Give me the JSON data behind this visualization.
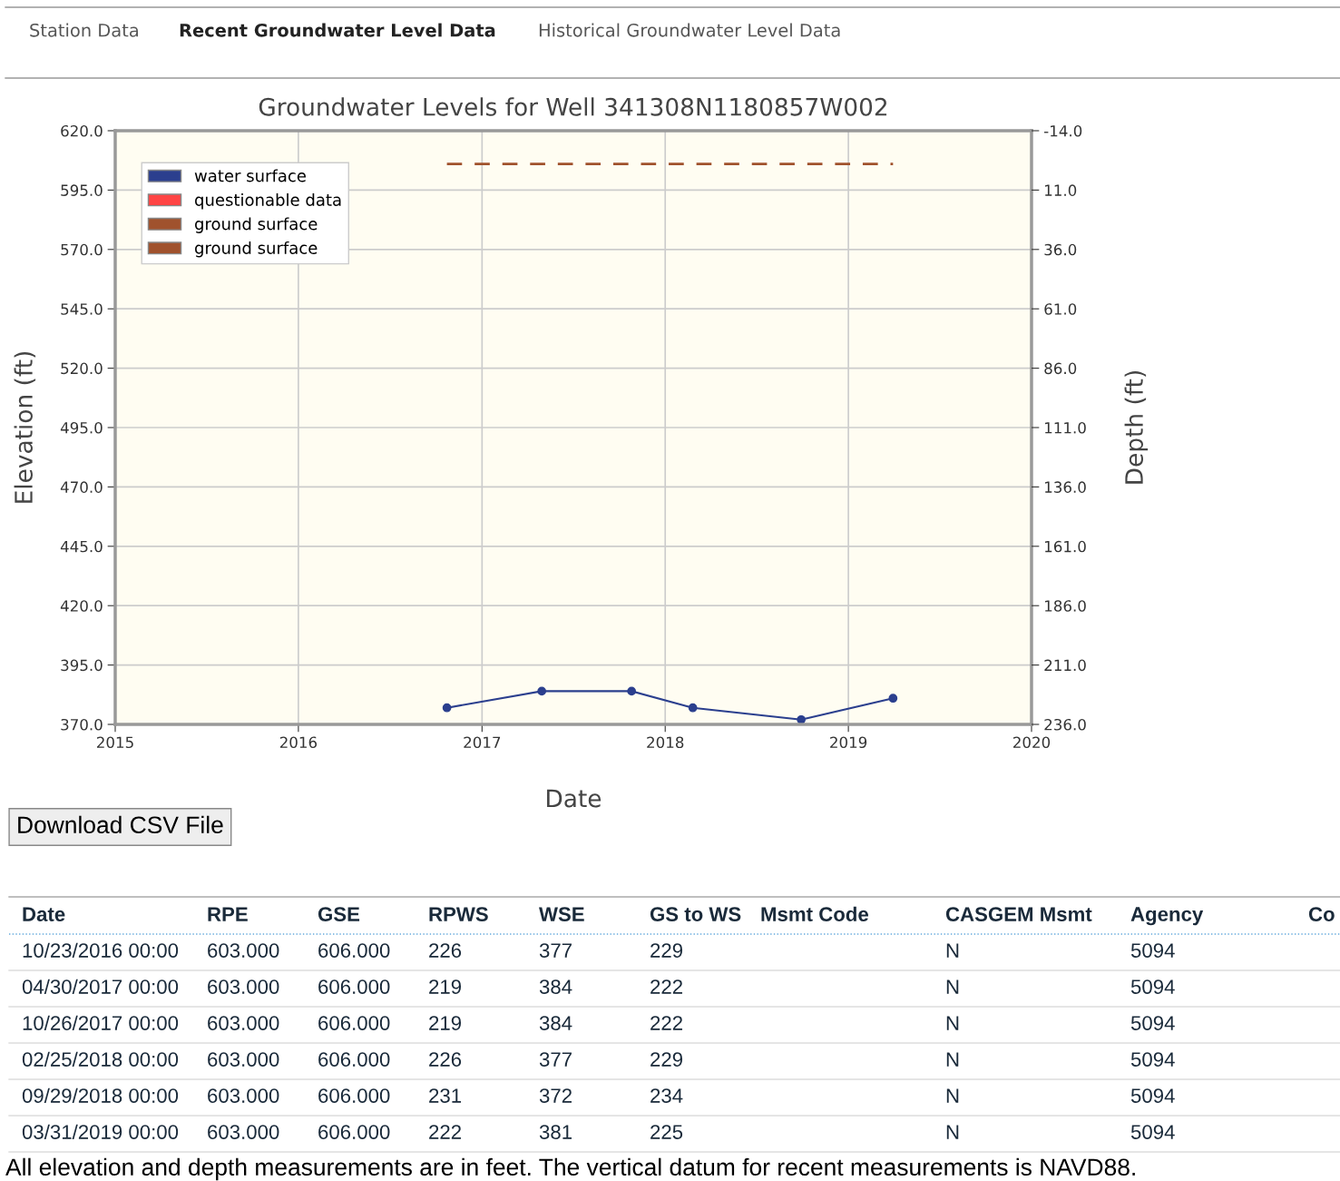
{
  "chart_data": {
    "type": "line",
    "title": "Groundwater Levels for Well 341308N1180857W002",
    "xlabel": "Date",
    "ylabel": "Elevation (ft)",
    "y2label": "Depth (ft)",
    "series": [
      {
        "name": "water surface",
        "color": "#2b3f8e",
        "marker": "circle",
        "line_style": "solid",
        "x": [
          "2016-10-23",
          "2017-04-30",
          "2017-10-26",
          "2018-02-25",
          "2018-09-29",
          "2019-03-31"
        ],
        "values": [
          377,
          384,
          384,
          377,
          372,
          381
        ]
      },
      {
        "name": "questionable data",
        "color": "#ff4444",
        "marker": "none",
        "line_style": "solid"
      },
      {
        "name": "ground surface",
        "color": "#a0522d",
        "marker": "none",
        "line_style": "dashed",
        "x": [
          "2016-10-23",
          "2019-03-31"
        ],
        "values": [
          606,
          606
        ]
      },
      {
        "name": "ground surface",
        "color": "#a0522d",
        "marker": "none",
        "line_style": "dashed"
      }
    ],
    "xlim": [
      "2015-01-01",
      "2020-01-01"
    ],
    "xticks": [
      {
        "value": "2015-01-01",
        "label": "2015"
      },
      {
        "value": "2016-01-01",
        "label": "2016"
      },
      {
        "value": "2017-01-01",
        "label": "2017"
      },
      {
        "value": "2018-01-01",
        "label": "2018"
      },
      {
        "value": "2019-01-01",
        "label": "2019"
      },
      {
        "value": "2020-01-01",
        "label": "2020"
      }
    ],
    "ylim": [
      370,
      620
    ],
    "yticks": [
      {
        "value": 370,
        "label": "370.0"
      },
      {
        "value": 395,
        "label": "395.0"
      },
      {
        "value": 420,
        "label": "420.0"
      },
      {
        "value": 445,
        "label": "445.0"
      },
      {
        "value": 470,
        "label": "470.0"
      },
      {
        "value": 495,
        "label": "495.0"
      },
      {
        "value": 520,
        "label": "520.0"
      },
      {
        "value": 545,
        "label": "545.0"
      },
      {
        "value": 570,
        "label": "570.0"
      },
      {
        "value": 595,
        "label": "595.0"
      },
      {
        "value": 620,
        "label": "620.0"
      }
    ],
    "y2lim": [
      236,
      -14
    ],
    "y2ticks": [
      {
        "value": 236,
        "label": "236.0"
      },
      {
        "value": 211,
        "label": "211.0"
      },
      {
        "value": 186,
        "label": "186.0"
      },
      {
        "value": 161,
        "label": "161.0"
      },
      {
        "value": 136,
        "label": "136.0"
      },
      {
        "value": 111,
        "label": "111.0"
      },
      {
        "value": 86,
        "label": "86.0"
      },
      {
        "value": 61,
        "label": "61.0"
      },
      {
        "value": 36,
        "label": "36.0"
      },
      {
        "value": 11,
        "label": "11.0"
      },
      {
        "value": -14,
        "label": "-14.0"
      }
    ],
    "grid": true,
    "legend": "top left",
    "annotations": [
      "Station Data",
      "Recent Groundwater Level Data",
      "Historical Groundwater Level Data",
      "Download CSV File",
      "Date",
      "RPE",
      "GSE",
      "RPWS",
      "WSE",
      "GS to WS",
      "Msmt Code",
      "CASGEM Msmt",
      "Agency",
      "Co",
      "10/23/2016 00:00",
      "603.000",
      "606.000",
      "226",
      "377",
      "229",
      "N",
      "5094",
      "04/30/2017 00:00",
      "603.000",
      "606.000",
      "219",
      "384",
      "222",
      "N",
      "5094",
      "10/26/2017 00:00",
      "603.000",
      "606.000",
      "219",
      "384",
      "222",
      "N",
      "5094",
      "02/25/2018 00:00",
      "603.000",
      "606.000",
      "226",
      "377",
      "229",
      "N",
      "5094",
      "09/29/2018 00:00",
      "603.000",
      "606.000",
      "231",
      "372",
      "234",
      "N",
      "5094",
      "03/31/2019 00:00",
      "603.000",
      "606.000",
      "222",
      "381",
      "225",
      "N",
      "5094",
      "All elevation and depth measurements are in feet. The vertical datum for recent measurements is NAVD88."
    ]
  }
}
